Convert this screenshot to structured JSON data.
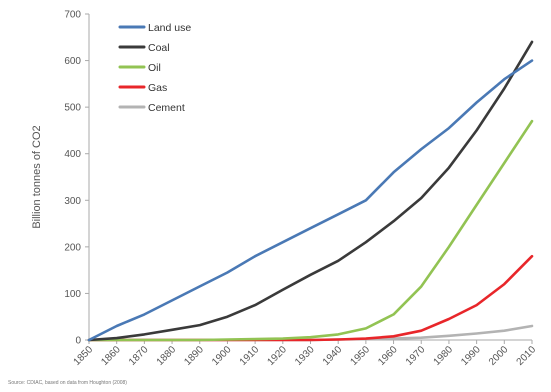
{
  "chart_data": {
    "type": "line",
    "title": "",
    "xlabel": "",
    "ylabel": "Billion tonnes of CO2",
    "x": [
      1850,
      1860,
      1870,
      1880,
      1890,
      1900,
      1910,
      1920,
      1930,
      1940,
      1950,
      1960,
      1970,
      1980,
      1990,
      2000,
      2010
    ],
    "x_tick_labels": [
      "1850",
      "1860",
      "1870",
      "1880",
      "1890",
      "1900",
      "1910",
      "1920",
      "1930",
      "1940",
      "1950",
      "1960",
      "1970",
      "1980",
      "1990",
      "2000",
      "2010"
    ],
    "xlim": [
      1850,
      2010
    ],
    "ylim": [
      0,
      700
    ],
    "y_ticks": [
      0,
      100,
      200,
      300,
      400,
      500,
      600,
      700
    ],
    "grid": false,
    "legend_position": "top-left",
    "series": [
      {
        "name": "Land use",
        "color": "#4a79b5",
        "values": [
          0,
          30,
          55,
          85,
          115,
          145,
          180,
          210,
          240,
          270,
          300,
          360,
          410,
          455,
          510,
          560,
          600
        ]
      },
      {
        "name": "Coal",
        "color": "#3a3a3a",
        "values": [
          0,
          4,
          12,
          22,
          32,
          50,
          75,
          108,
          140,
          170,
          210,
          255,
          305,
          370,
          450,
          540,
          640
        ]
      },
      {
        "name": "Oil",
        "color": "#92c353",
        "values": [
          0,
          0,
          0,
          0,
          0,
          1,
          2,
          3,
          6,
          12,
          25,
          55,
          115,
          200,
          290,
          380,
          470
        ]
      },
      {
        "name": "Gas",
        "color": "#e8262a",
        "values": [
          0,
          0,
          0,
          0,
          0,
          0,
          0,
          0,
          0,
          1,
          3,
          8,
          20,
          45,
          75,
          120,
          180
        ]
      },
      {
        "name": "Cement",
        "color": "#b3b3b3",
        "values": [
          0,
          0,
          0,
          0,
          0,
          0,
          0,
          0,
          0,
          1,
          2,
          3,
          5,
          9,
          14,
          20,
          30
        ]
      }
    ]
  },
  "source_note": "Source: CDIAC, based on data from Houghton (2008)"
}
